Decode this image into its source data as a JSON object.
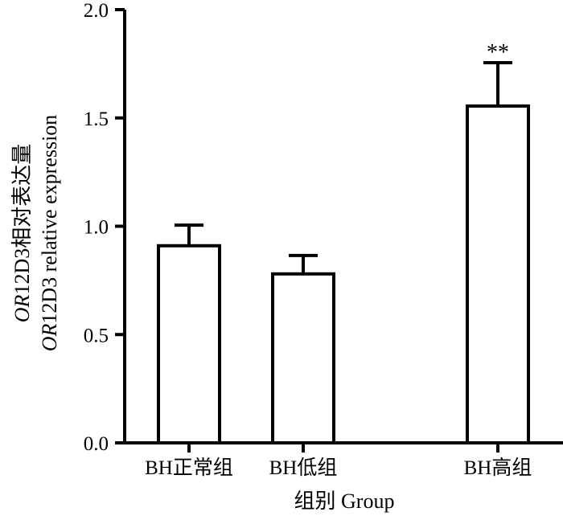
{
  "chart_data": {
    "type": "bar",
    "categories": [
      "BH正常组",
      "BH低组",
      "BH高组"
    ],
    "values": [
      0.91,
      0.78,
      1.555
    ],
    "errors": [
      0.095,
      0.085,
      0.2
    ],
    "annotations": [
      "",
      "",
      "**"
    ],
    "xlabel": "组别 Group",
    "ylabel_line1_italic": "OR",
    "ylabel_line1_rest": "12D3相对表达量",
    "ylabel_line2_italic": "OR",
    "ylabel_line2_rest": "12D3 relative expression",
    "yticks": [
      "0.0",
      "0.5",
      "1.0",
      "1.5",
      "2.0"
    ],
    "ylim": [
      0,
      2.0
    ],
    "bar_fill": "#ffffff",
    "bar_stroke": "#000000"
  }
}
